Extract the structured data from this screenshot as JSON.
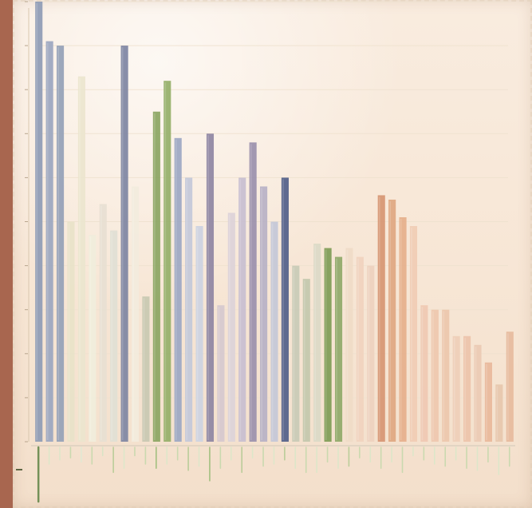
{
  "chart_data": {
    "type": "bar",
    "title": "",
    "xlabel": "",
    "ylabel": "",
    "ylim": [
      0,
      100
    ],
    "grid": true,
    "legend": "none",
    "values": [
      100,
      91,
      90,
      50,
      83,
      47,
      54,
      48,
      90,
      58,
      33,
      75,
      82,
      69,
      60,
      49,
      70,
      31,
      52,
      60,
      68,
      58,
      50,
      60,
      40,
      37,
      45,
      44,
      42,
      44,
      42,
      40,
      56,
      55,
      51,
      49,
      31,
      30,
      30,
      24,
      24,
      22,
      18,
      13,
      25
    ],
    "below_values": [
      26,
      8,
      6,
      5,
      7,
      8,
      4,
      12,
      10,
      4,
      8,
      10,
      8,
      6,
      11,
      9,
      16,
      10,
      6,
      12,
      5,
      9,
      8,
      6,
      10,
      12,
      12,
      7,
      10,
      9,
      5,
      7,
      10,
      7,
      12,
      4,
      6,
      8,
      9,
      6,
      10,
      11,
      7,
      13,
      9
    ],
    "colors": [
      "#8f9cb6",
      "#9ca7c0",
      "#95a1b8",
      "#e9e3c9",
      "#ece6cf",
      "#f1eedd",
      "#e8e0d3",
      "#e1e0d5",
      "#7f86a3",
      "#f3ecde",
      "#c9c9b2",
      "#8ca663",
      "#96b06a",
      "#9da8c4",
      "#c4c9da",
      "#cdd3e2",
      "#8f86a3",
      "#d6c9cf",
      "#ddd3d9",
      "#c8bfd1",
      "#9b91ad",
      "#b8b2c6",
      "#c5c8d8",
      "#52618a",
      "#c9cbb7",
      "#c4c8ad",
      "#dcdac7",
      "#7f9d56",
      "#91aa6b",
      "#f0dcc7",
      "#f1d3bf",
      "#eed2bf",
      "#d79673",
      "#e0a882",
      "#e6b08c",
      "#f1cdb5",
      "#f0c9b3",
      "#efc8af",
      "#edc7ad",
      "#efcfb9",
      "#edc4ab",
      "#eccbb4",
      "#eab99c",
      "#e7c7ad",
      "#e7bb9e"
    ],
    "below_colors": [
      "#6e8d52",
      "#dce7c9",
      "#dce7c9",
      "#c8d9ae",
      "#e0e9d4",
      "#c8d9ae",
      "#d8e4c5",
      "#b7cc97",
      "#dce7c9",
      "#c8d9ae",
      "#c8d9ae",
      "#9fbe7c",
      "#dce7c9",
      "#c8d9ae",
      "#b7cc97",
      "#dce7c9",
      "#9fbe7c",
      "#c8d9ae",
      "#dce7c9",
      "#b7cc97",
      "#dce7c9",
      "#c8d9ae",
      "#dce7c9",
      "#b7cc97",
      "#dce7c9",
      "#c8d9ae",
      "#dce7c9",
      "#c8d9ae",
      "#dce7c9",
      "#b7cc97",
      "#c8d9ae",
      "#dce7c9",
      "#c8d9ae",
      "#dce7c9",
      "#c8d9ae",
      "#dce7c9",
      "#c8d9ae",
      "#dce7c9",
      "#c8d9ae",
      "#dce7c9",
      "#c8d9ae",
      "#dce7c9",
      "#c8d9ae",
      "#dce7c9",
      "#c8d9ae"
    ]
  }
}
